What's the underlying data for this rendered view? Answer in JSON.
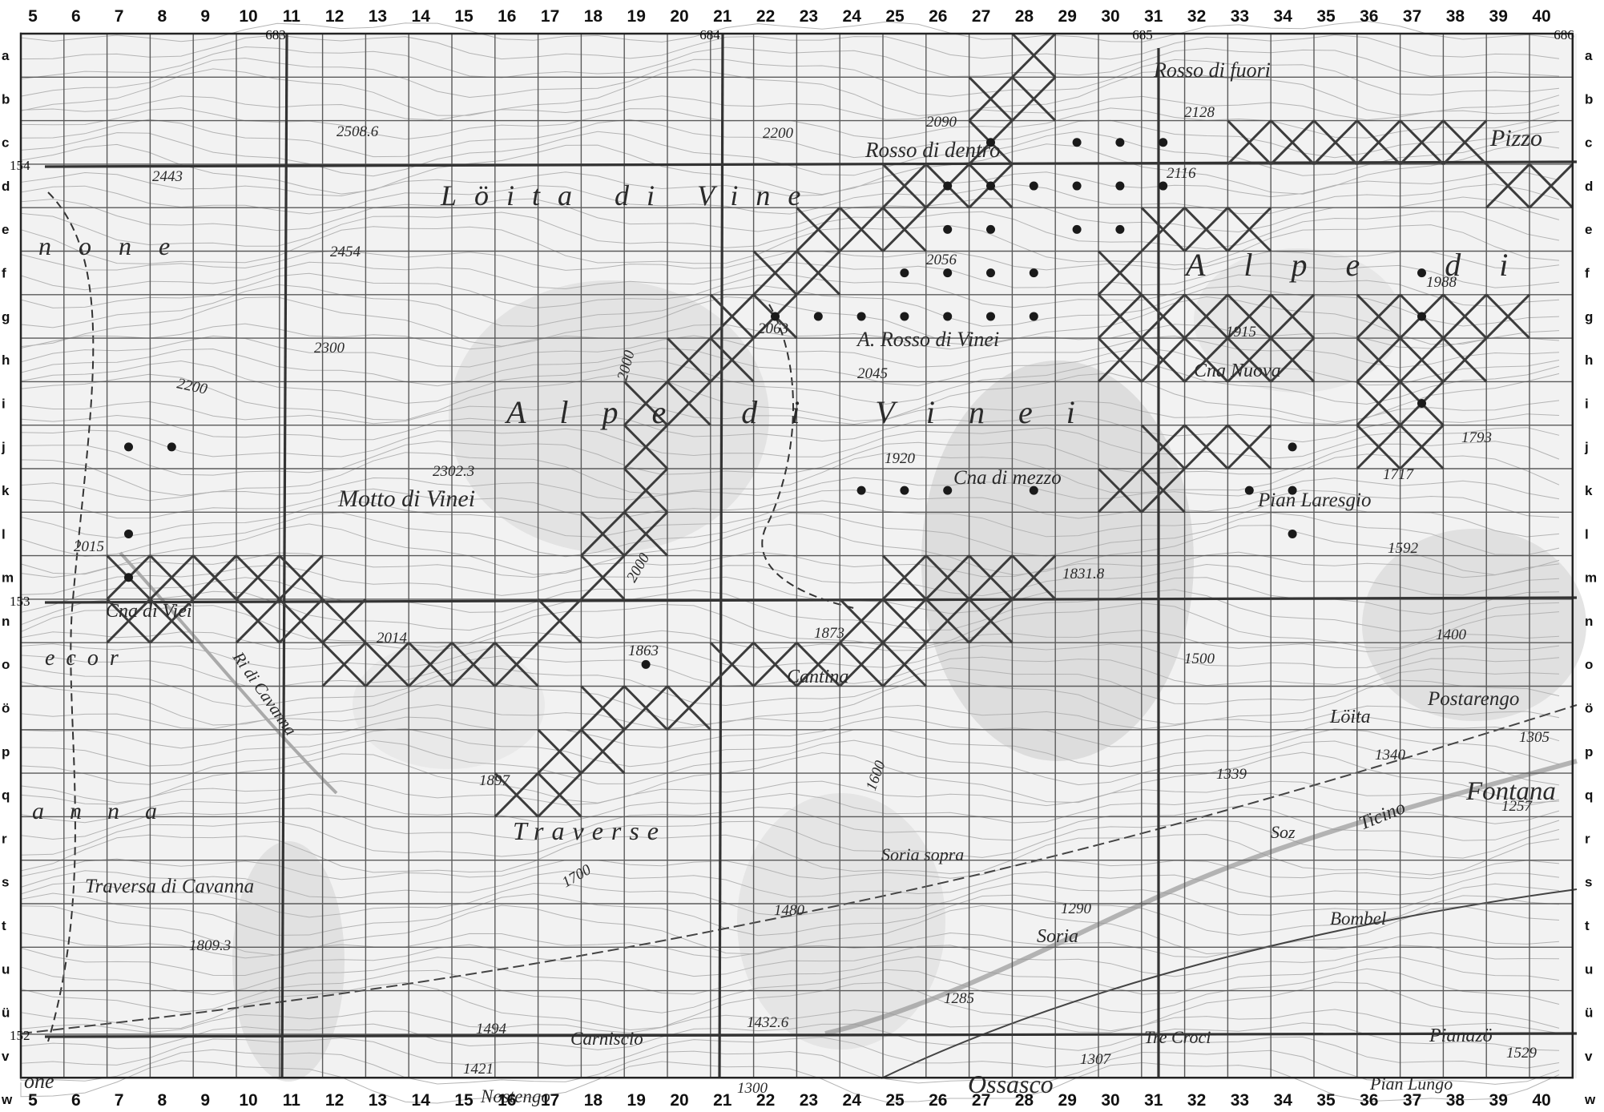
{
  "map": {
    "grid_columns": [
      "5",
      "6",
      "7",
      "8",
      "9",
      "10",
      "11",
      "12",
      "13",
      "14",
      "15",
      "16",
      "17",
      "18",
      "19",
      "20",
      "21",
      "22",
      "23",
      "24",
      "25",
      "26",
      "27",
      "28",
      "29",
      "30",
      "31",
      "32",
      "33",
      "34",
      "35",
      "36",
      "37",
      "38",
      "39",
      "40"
    ],
    "grid_rows": [
      "a",
      "b",
      "c",
      "d",
      "e",
      "f",
      "g",
      "h",
      "i",
      "j",
      "k",
      "l",
      "m",
      "n",
      "o",
      "ö",
      "p",
      "q",
      "r",
      "s",
      "t",
      "u",
      "ü",
      "v",
      "w"
    ],
    "grid_rows_left": [
      "a",
      "b",
      "c",
      "d",
      "e",
      "f",
      "g",
      "h",
      "i",
      "j",
      "k",
      "l",
      "m",
      "n",
      "o",
      "ö",
      "p",
      "q",
      "r",
      "s",
      "t",
      "u",
      "ü",
      "v",
      "w"
    ],
    "coordinates": {
      "easting": [
        "683",
        "684",
        "685",
        "686"
      ],
      "northing": [
        "154",
        "153",
        "152"
      ]
    },
    "place_labels": [
      "Rosso di fuori",
      "Rosso di dentro",
      "Pizzo",
      "Löita di Vine",
      "Alpe di",
      "A. Rosso di Vinei",
      "Cna Nuova",
      "Alpe di Vinei",
      "Cna di mezzo",
      "Pian Laresgio",
      "Motto di Vinei",
      "Cna di Viei",
      "Cantina",
      "Löita",
      "Postarengo",
      "Fontana",
      "Soz",
      "Traverse",
      "Soria sopra",
      "Traversa di Cavanna",
      "Bombel",
      "Soria",
      "Ticino",
      "Tre Croci",
      "Pianazö",
      "Carniscio",
      "Ossasco",
      "Nostengo",
      "Pian Lungo",
      "none",
      "anna",
      "ecor",
      "one",
      "Ri di Cavanna"
    ],
    "elevation_labels": [
      "2508.6",
      "2443",
      "2454",
      "2300",
      "2200",
      "2302.3",
      "2200",
      "2128",
      "2116",
      "2090",
      "2056",
      "2063",
      "2045",
      "1988",
      "1915",
      "1793",
      "1920",
      "1717",
      "1592",
      "2015",
      "2014",
      "1863",
      "1873",
      "1831.8",
      "1500",
      "1400",
      "2000",
      "2000",
      "1897",
      "1600",
      "1700",
      "1339",
      "1340",
      "1305",
      "1257",
      "1480",
      "1290",
      "1809.3",
      "1494",
      "1432.6",
      "1285",
      "1421",
      "1307",
      "1300",
      "1529"
    ]
  }
}
